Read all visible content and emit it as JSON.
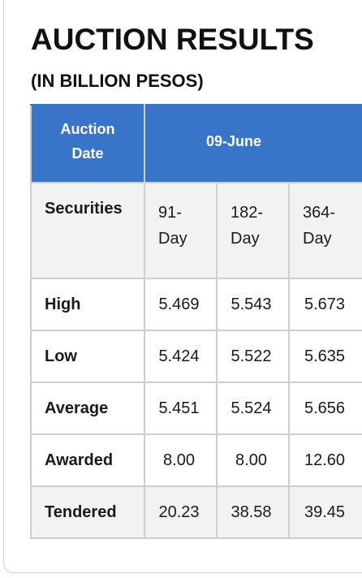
{
  "title": "AUCTION RESULTS",
  "subtitle": "(IN BILLION PESOS)",
  "table": {
    "header": {
      "auction_date_label_1": "Auction",
      "auction_date_label_2": "Date",
      "date_value": "09-June"
    },
    "securities": {
      "label": "Securities",
      "terms": [
        {
          "line1": "91-",
          "line2": "Day"
        },
        {
          "line1": "182-",
          "line2": "Day"
        },
        {
          "line1": "364-",
          "line2": "Day"
        }
      ]
    },
    "rows": [
      {
        "label": "High",
        "values": [
          "5.469",
          "5.543",
          "5.673"
        ]
      },
      {
        "label": "Low",
        "values": [
          "5.424",
          "5.522",
          "5.635"
        ]
      },
      {
        "label": "Average",
        "values": [
          "5.451",
          "5.524",
          "5.656"
        ]
      },
      {
        "label": "Awarded",
        "values": [
          "8.00",
          "8.00",
          "12.60"
        ]
      },
      {
        "label": "Tendered",
        "values": [
          "20.23",
          "38.58",
          "39.45"
        ]
      }
    ]
  },
  "colors": {
    "header_bg": "#3874c8",
    "alt_row_bg": "#f2f2f2"
  }
}
